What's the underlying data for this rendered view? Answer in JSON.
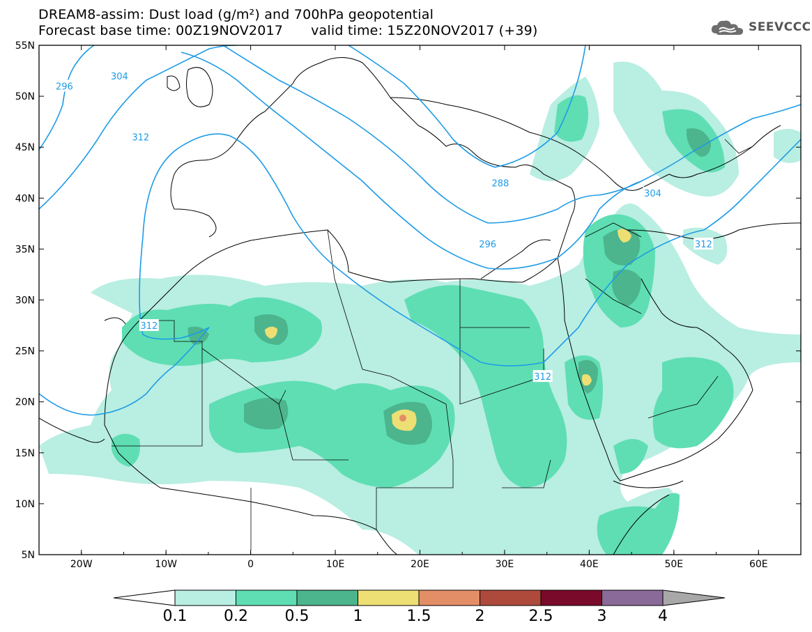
{
  "header": {
    "title_line1": "DREAM8-assim: Dust load (g/m²) and 700hPa geopotential",
    "base_time": "Forecast base time: 00Z19NOV2017",
    "valid_time": "valid time: 15Z20NOV2017 (+39)",
    "logo_text": "SEEVCCC",
    "logo_icon": "cloud-icon"
  },
  "map": {
    "lat_ticks": [
      {
        "value": 55,
        "label": "55N"
      },
      {
        "value": 50,
        "label": "50N"
      },
      {
        "value": 45,
        "label": "45N"
      },
      {
        "value": 40,
        "label": "40N"
      },
      {
        "value": 35,
        "label": "35N"
      },
      {
        "value": 30,
        "label": "30N"
      },
      {
        "value": 25,
        "label": "25N"
      },
      {
        "value": 20,
        "label": "20N"
      },
      {
        "value": 15,
        "label": "15N"
      },
      {
        "value": 10,
        "label": "10N"
      },
      {
        "value": 5,
        "label": "5N"
      }
    ],
    "lon_ticks": [
      {
        "value": -20,
        "label": "20W"
      },
      {
        "value": -10,
        "label": "10W"
      },
      {
        "value": 0,
        "label": "0"
      },
      {
        "value": 10,
        "label": "10E"
      },
      {
        "value": 20,
        "label": "20E"
      },
      {
        "value": 30,
        "label": "30E"
      },
      {
        "value": 40,
        "label": "40E"
      },
      {
        "value": 50,
        "label": "50E"
      },
      {
        "value": 60,
        "label": "60E"
      }
    ],
    "lon_range": [
      -25,
      65
    ],
    "lat_range": [
      5,
      55
    ],
    "contour_labels": [
      {
        "text": "296",
        "lon": -22,
        "lat": 51
      },
      {
        "text": "304",
        "lon": -15.5,
        "lat": 52
      },
      {
        "text": "312",
        "lon": -13,
        "lat": 46
      },
      {
        "text": "288",
        "lon": 29.5,
        "lat": 41.5
      },
      {
        "text": "296",
        "lon": 28,
        "lat": 35.5
      },
      {
        "text": "304",
        "lon": 47.5,
        "lat": 40.5
      },
      {
        "text": "312",
        "lon": 53.5,
        "lat": 35.5
      },
      {
        "text": "312",
        "lon": -12,
        "lat": 27.5
      },
      {
        "text": "312",
        "lon": 34.5,
        "lat": 22.5
      }
    ]
  },
  "colorbar": {
    "labels": [
      "0.1",
      "0.2",
      "0.5",
      "1",
      "1.5",
      "2",
      "2.5",
      "3",
      "4"
    ],
    "colors": [
      "#ffffff",
      "#b9eee2",
      "#5fdeb3",
      "#4cb58d",
      "#eedf74",
      "#e38e66",
      "#ad4a3c",
      "#7a0a2a",
      "#8a6a98",
      "#a8a8a8"
    ]
  },
  "colors": {
    "contour": "#1d9be6",
    "dust_0_1": "#b9eee2",
    "dust_0_2": "#5fdeb3",
    "dust_0_5": "#4cb58d",
    "dust_1": "#eedf74",
    "dust_1_5": "#e38e66"
  }
}
